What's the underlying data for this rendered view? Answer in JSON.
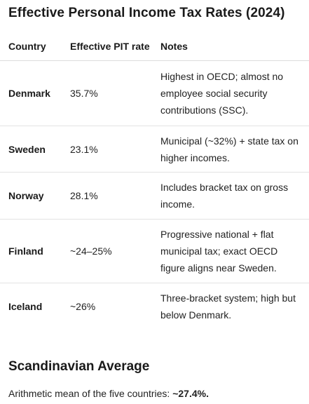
{
  "title": "Effective Personal Income Tax Rates (2024)",
  "table": {
    "headers": [
      "Country",
      "Effective PIT rate",
      "Notes"
    ],
    "rows": [
      {
        "country": "Denmark",
        "rate": "35.7%",
        "notes": "Highest in OECD; almost no employee social security contributions (SSC)."
      },
      {
        "country": "Sweden",
        "rate": "23.1%",
        "notes": "Municipal (~32%) + state tax on higher incomes."
      },
      {
        "country": "Norway",
        "rate": "28.1%",
        "notes": "Includes bracket tax on gross income."
      },
      {
        "country": "Finland",
        "rate": "~24–25%",
        "notes": "Progressive national + flat municipal tax; exact OECD figure aligns near Sweden."
      },
      {
        "country": "Iceland",
        "rate": "~26%",
        "notes": "Three-bracket system; high but below Denmark."
      }
    ]
  },
  "average": {
    "heading": "Scandinavian Average",
    "text": "Arithmetic mean of the five countries: ",
    "value": "~27.4%."
  }
}
